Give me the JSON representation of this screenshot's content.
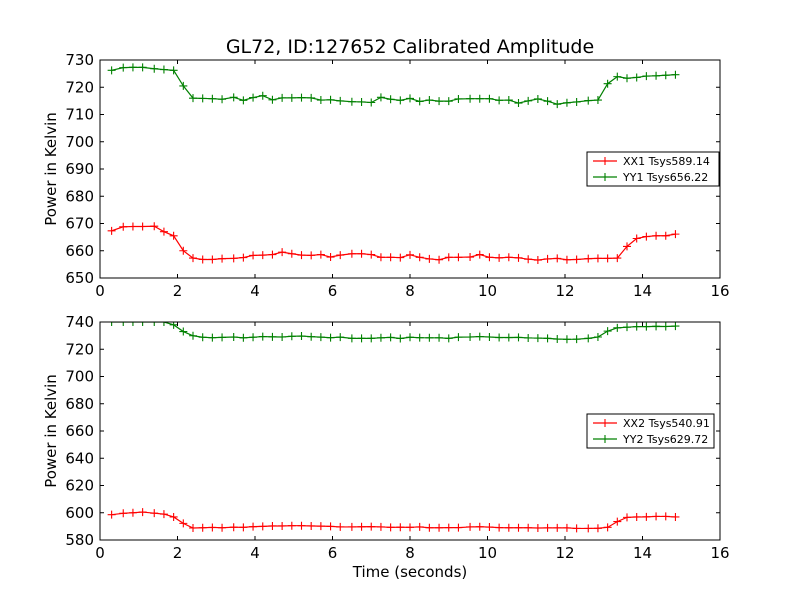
{
  "title": "GL72, ID:127652 Calibrated Amplitude",
  "chart_data": [
    {
      "type": "line",
      "title": "GL72, ID:127652 Calibrated Amplitude",
      "xlabel": "",
      "ylabel": "Power in Kelvin",
      "xlim": [
        0,
        16
      ],
      "ylim": [
        650,
        730
      ],
      "xticks": [
        "0",
        "2",
        "4",
        "6",
        "8",
        "10",
        "12",
        "14",
        "16"
      ],
      "yticks": [
        "650",
        "660",
        "670",
        "680",
        "690",
        "700",
        "710",
        "720",
        "730"
      ],
      "grid": false,
      "legend_position": "right",
      "x": [
        0.3,
        0.6,
        0.85,
        1.1,
        1.4,
        1.65,
        1.9,
        2.15,
        2.4,
        2.65,
        2.9,
        3.15,
        3.45,
        3.7,
        3.95,
        4.2,
        4.45,
        4.7,
        4.95,
        5.2,
        5.45,
        5.7,
        5.95,
        6.2,
        6.5,
        6.75,
        7.0,
        7.25,
        7.5,
        7.75,
        8.0,
        8.25,
        8.5,
        8.75,
        9.0,
        9.25,
        9.55,
        9.8,
        10.05,
        10.3,
        10.55,
        10.8,
        11.05,
        11.3,
        11.55,
        11.8,
        12.05,
        12.3,
        12.6,
        12.85,
        13.1,
        13.35,
        13.6,
        13.85,
        14.1,
        14.35,
        14.6,
        14.85
      ],
      "series": [
        {
          "name": "XX1 Tsys589.14",
          "color": "#ff0000",
          "values": [
            667.3,
            668.8,
            668.9,
            668.9,
            669.0,
            667.0,
            665.5,
            660.0,
            657.3,
            656.8,
            656.8,
            657.1,
            657.2,
            657.5,
            658.3,
            658.4,
            658.6,
            659.5,
            658.9,
            658.4,
            658.3,
            658.6,
            657.7,
            658.4,
            658.9,
            658.9,
            658.6,
            657.6,
            657.6,
            657.5,
            658.5,
            657.6,
            657.0,
            656.7,
            657.6,
            657.6,
            657.7,
            658.6,
            657.6,
            657.4,
            657.6,
            657.4,
            656.9,
            656.6,
            657.0,
            657.2,
            656.7,
            656.8,
            657.1,
            657.2,
            657.2,
            657.3,
            661.6,
            664.5,
            665.2,
            665.5,
            665.5,
            666.1
          ]
        },
        {
          "name": "YY1 Tsys656.22",
          "color": "#008000",
          "values": [
            726.2,
            727.2,
            727.3,
            727.3,
            726.8,
            726.5,
            726.2,
            720.5,
            716.0,
            715.9,
            715.8,
            715.6,
            716.3,
            715.2,
            716.2,
            716.9,
            715.4,
            716.1,
            716.1,
            716.2,
            716.1,
            715.3,
            715.4,
            715.0,
            714.7,
            714.6,
            714.4,
            716.3,
            715.6,
            715.2,
            715.9,
            714.8,
            715.3,
            714.9,
            714.9,
            715.7,
            715.8,
            715.8,
            715.8,
            715.2,
            715.3,
            714.2,
            715.0,
            715.7,
            714.9,
            713.8,
            714.3,
            714.6,
            715.1,
            715.3,
            721.3,
            723.9,
            723.3,
            723.6,
            724.1,
            724.2,
            724.4,
            724.6
          ]
        }
      ]
    },
    {
      "type": "line",
      "title": "",
      "xlabel": "Time (seconds)",
      "ylabel": "Power in Kelvin",
      "xlim": [
        0,
        16
      ],
      "ylim": [
        580,
        740
      ],
      "xticks": [
        "0",
        "2",
        "4",
        "6",
        "8",
        "10",
        "12",
        "14",
        "16"
      ],
      "yticks": [
        "580",
        "600",
        "620",
        "640",
        "660",
        "680",
        "700",
        "720",
        "740"
      ],
      "grid": false,
      "legend_position": "right",
      "x": [
        0.3,
        0.6,
        0.85,
        1.1,
        1.4,
        1.65,
        1.9,
        2.15,
        2.4,
        2.65,
        2.9,
        3.15,
        3.45,
        3.7,
        3.95,
        4.2,
        4.45,
        4.7,
        4.95,
        5.2,
        5.45,
        5.7,
        5.95,
        6.2,
        6.5,
        6.75,
        7.0,
        7.25,
        7.5,
        7.75,
        8.0,
        8.25,
        8.5,
        8.75,
        9.0,
        9.25,
        9.55,
        9.8,
        10.05,
        10.3,
        10.55,
        10.8,
        11.05,
        11.3,
        11.55,
        11.8,
        12.05,
        12.3,
        12.6,
        12.85,
        13.1,
        13.35,
        13.6,
        13.85,
        14.1,
        14.35,
        14.6,
        14.85
      ],
      "series": [
        {
          "name": "XX2 Tsys540.91",
          "color": "#ff0000",
          "values": [
            598.6,
            599.6,
            600.0,
            600.5,
            599.7,
            599.0,
            596.9,
            592.2,
            588.8,
            589.0,
            589.2,
            589.0,
            589.4,
            589.3,
            589.8,
            590.0,
            590.3,
            590.3,
            590.5,
            590.5,
            590.3,
            590.2,
            590.0,
            589.6,
            589.6,
            589.7,
            589.8,
            589.6,
            589.3,
            589.4,
            589.3,
            589.6,
            589.0,
            589.0,
            589.1,
            589.1,
            589.6,
            589.7,
            589.5,
            589.1,
            589.0,
            589.0,
            589.0,
            588.8,
            588.9,
            588.9,
            588.9,
            588.5,
            588.5,
            588.6,
            589.3,
            593.5,
            596.6,
            596.9,
            597.0,
            597.3,
            597.3,
            596.9
          ]
        },
        {
          "name": "YY2 Tsys629.72",
          "color": "#008000",
          "values": [
            740.0,
            740.0,
            740.0,
            740.0,
            740.0,
            740.0,
            737.9,
            733.0,
            729.9,
            728.8,
            728.5,
            728.7,
            729.0,
            728.4,
            728.8,
            729.3,
            729.1,
            729.0,
            729.5,
            729.7,
            729.2,
            728.9,
            728.5,
            728.9,
            728.0,
            728.0,
            728.0,
            728.4,
            728.7,
            727.9,
            728.8,
            728.5,
            728.4,
            728.4,
            728.0,
            728.9,
            729.0,
            729.3,
            729.0,
            728.6,
            728.6,
            728.7,
            728.3,
            728.2,
            728.0,
            727.5,
            727.3,
            727.4,
            728.0,
            729.0,
            733.3,
            735.7,
            736.2,
            736.6,
            736.6,
            736.8,
            736.7,
            737.0
          ]
        }
      ]
    }
  ]
}
